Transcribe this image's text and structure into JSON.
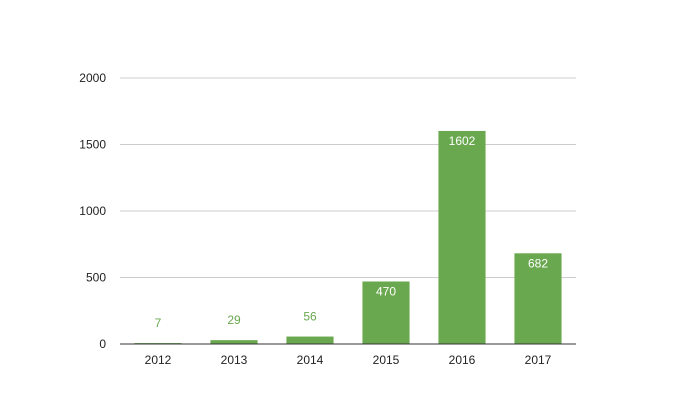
{
  "chart_data": {
    "type": "bar",
    "categories": [
      "2012",
      "2013",
      "2014",
      "2015",
      "2016",
      "2017"
    ],
    "values": [
      7,
      29,
      56,
      470,
      1602,
      682
    ],
    "data_labels": [
      "7",
      "29",
      "56",
      "470",
      "1602",
      "682"
    ],
    "title": "",
    "xlabel": "",
    "ylabel": "",
    "ylim": [
      0,
      2000
    ],
    "yticks": [
      0,
      500,
      1000,
      1500,
      2000
    ],
    "ytick_labels": [
      "0",
      "500",
      "1000",
      "1500",
      "2000"
    ],
    "grid": true,
    "legend": "none",
    "colors": {
      "bar": "#6aa84f",
      "label_outside": "#6aa84f",
      "label_inside": "#ffffff",
      "grid": "#cccccc",
      "axis": "#333333",
      "tick_text": "#222222"
    }
  }
}
